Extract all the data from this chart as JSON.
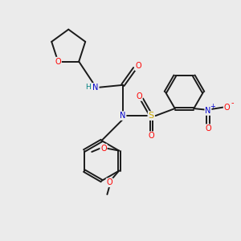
{
  "background_color": "#ebebeb",
  "bond_color": "#1a1a1a",
  "atom_colors": {
    "O": "#ff0000",
    "N": "#0000cc",
    "S": "#ccaa00",
    "H": "#008080",
    "C": "#1a1a1a"
  },
  "figsize": [
    3.0,
    3.0
  ],
  "dpi": 100
}
